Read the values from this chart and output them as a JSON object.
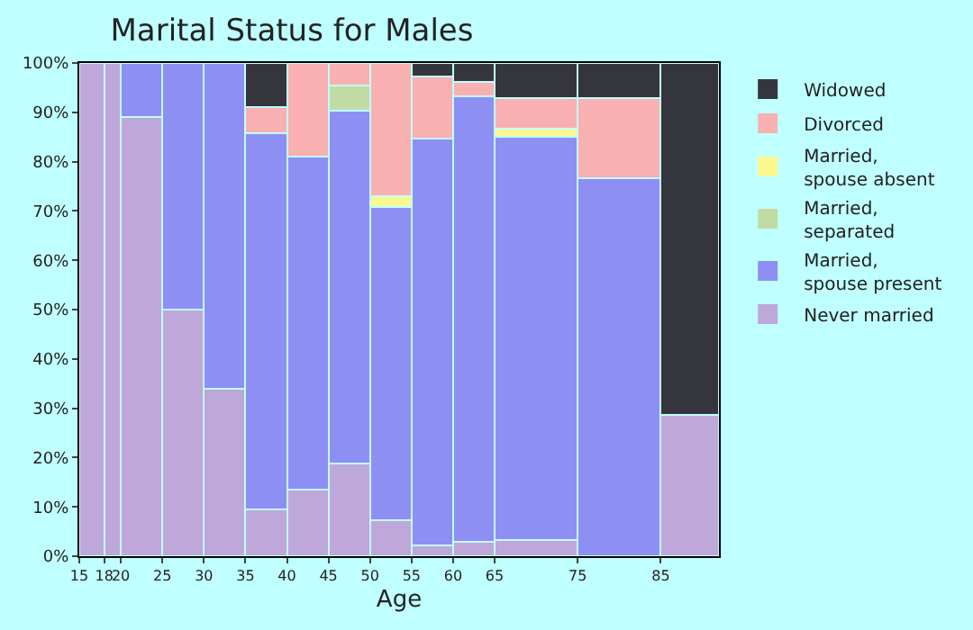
{
  "chart_data": {
    "type": "bar",
    "stacked": true,
    "title": "Marital Status for Males",
    "xlabel": "Age",
    "x": [
      16.5,
      19,
      22.5,
      27.5,
      32.5,
      37.5,
      42.5,
      47.5,
      52.5,
      57.5,
      62.5,
      70,
      80,
      88.5
    ],
    "xlim": [
      15,
      92
    ],
    "xticks": [
      15,
      18,
      20,
      25,
      30,
      35,
      40,
      45,
      50,
      55,
      60,
      65,
      75,
      85
    ],
    "ylim": [
      0,
      100
    ],
    "yticks": [
      {
        "value": 0,
        "label": "0%"
      },
      {
        "value": 10,
        "label": "10%"
      },
      {
        "value": 20,
        "label": "20%"
      },
      {
        "value": 30,
        "label": "30%"
      },
      {
        "value": 40,
        "label": "40%"
      },
      {
        "value": 50,
        "label": "50%"
      },
      {
        "value": 60,
        "label": "60%"
      },
      {
        "value": 70,
        "label": "70%"
      },
      {
        "value": 80,
        "label": "80%"
      },
      {
        "value": 90,
        "label": "90%"
      },
      {
        "value": 100,
        "label": "100%"
      }
    ],
    "legend": "right",
    "series": [
      {
        "name": "Never married",
        "color": "#bea7d9",
        "values": [
          100,
          100,
          89,
          50,
          34,
          9.5,
          13.5,
          18.8,
          7.3,
          2.2,
          2.9,
          3.3,
          null,
          28.6
        ]
      },
      {
        "name": "Married, spouse present",
        "color": "#8e8ff2",
        "values": [
          null,
          null,
          11,
          50,
          66,
          76.3,
          67.5,
          71.5,
          63.5,
          82.5,
          90.3,
          81.8,
          76.7,
          null
        ]
      },
      {
        "name": "Married, separated",
        "color": "#c1dba5",
        "values": [
          null,
          null,
          null,
          null,
          null,
          null,
          null,
          5.2,
          null,
          null,
          null,
          null,
          null,
          null
        ]
      },
      {
        "name": "Married, spouse absent",
        "color": "#fbf88f",
        "values": [
          null,
          null,
          null,
          null,
          null,
          null,
          null,
          null,
          2.2,
          null,
          null,
          1.5,
          null,
          null
        ]
      },
      {
        "name": "Divorced",
        "color": "#f8b0b0",
        "values": [
          null,
          null,
          null,
          null,
          null,
          5.2,
          19,
          4.5,
          27,
          12.5,
          2.9,
          6.2,
          16.1,
          null
        ]
      },
      {
        "name": "Widowed",
        "color": "#35363d",
        "values": [
          null,
          null,
          null,
          null,
          null,
          9,
          null,
          null,
          null,
          2.8,
          3.9,
          7.2,
          7.2,
          71.4
        ]
      }
    ]
  }
}
